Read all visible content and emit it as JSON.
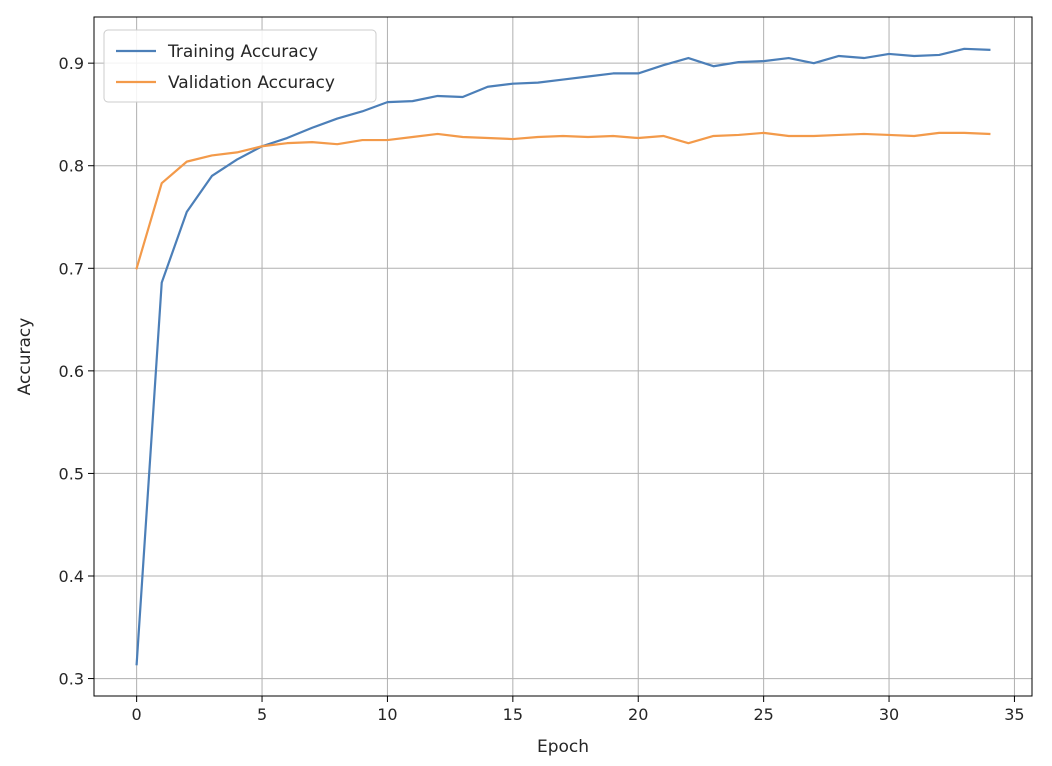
{
  "chart_data": {
    "type": "line",
    "title": "",
    "xlabel": "Epoch",
    "ylabel": "Accuracy",
    "xlim": [
      -1.7,
      35.7
    ],
    "ylim": [
      0.283,
      0.945
    ],
    "xticks": [
      0,
      5,
      10,
      15,
      20,
      25,
      30,
      35
    ],
    "yticks": [
      0.3,
      0.4,
      0.5,
      0.6,
      0.7,
      0.8,
      0.9
    ],
    "xtick_labels": [
      "0",
      "5",
      "10",
      "15",
      "20",
      "25",
      "30",
      "35"
    ],
    "ytick_labels": [
      "0.3",
      "0.4",
      "0.5",
      "0.6",
      "0.7",
      "0.8",
      "0.9"
    ],
    "grid": true,
    "legend_position": "top-left",
    "x": [
      0,
      1,
      2,
      3,
      4,
      5,
      6,
      7,
      8,
      9,
      10,
      11,
      12,
      13,
      14,
      15,
      16,
      17,
      18,
      19,
      20,
      21,
      22,
      23,
      24,
      25,
      26,
      27,
      28,
      29,
      30,
      31,
      32,
      33,
      34
    ],
    "series": [
      {
        "name": "Training Accuracy",
        "color": "#4c7fb8",
        "values": [
          0.314,
          0.686,
          0.755,
          0.79,
          0.806,
          0.819,
          0.827,
          0.837,
          0.846,
          0.853,
          0.862,
          0.863,
          0.868,
          0.867,
          0.877,
          0.88,
          0.881,
          0.884,
          0.887,
          0.89,
          0.89,
          0.898,
          0.905,
          0.897,
          0.901,
          0.902,
          0.905,
          0.9,
          0.907,
          0.905,
          0.909,
          0.907,
          0.908,
          0.914,
          0.913
        ]
      },
      {
        "name": "Validation Accuracy",
        "color": "#f39a4a",
        "values": [
          0.7,
          0.783,
          0.804,
          0.81,
          0.813,
          0.819,
          0.822,
          0.823,
          0.821,
          0.825,
          0.825,
          0.828,
          0.831,
          0.828,
          0.827,
          0.826,
          0.828,
          0.829,
          0.828,
          0.829,
          0.827,
          0.829,
          0.822,
          0.829,
          0.83,
          0.832,
          0.829,
          0.829,
          0.83,
          0.831,
          0.83,
          0.829,
          0.832,
          0.832,
          0.831
        ]
      }
    ]
  }
}
